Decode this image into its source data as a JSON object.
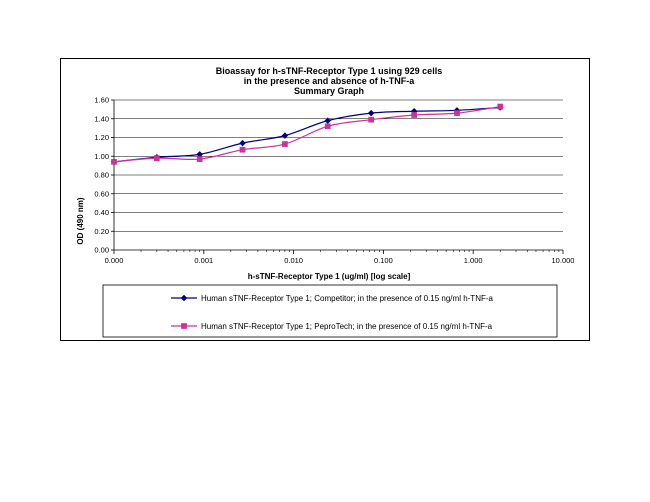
{
  "chart_data": {
    "type": "line",
    "title_lines": [
      "Bioassay for h-sTNF-Receptor Type 1 using 929 cells",
      "in the presence and absence of h-TNF-a",
      "Summary Graph"
    ],
    "xlabel": "h-sTNF-Receptor Type 1 (ug/ml) [log scale]",
    "ylabel": "OD (490 nm)",
    "x_scale": "log",
    "xlim": [
      0.0001,
      10
    ],
    "ylim": [
      0,
      1.6
    ],
    "x_ticks": [
      {
        "value": 0.0001,
        "label": "0.000"
      },
      {
        "value": 0.001,
        "label": "0.001"
      },
      {
        "value": 0.01,
        "label": "0.010"
      },
      {
        "value": 0.1,
        "label": "0.100"
      },
      {
        "value": 1,
        "label": "1.000"
      },
      {
        "value": 10,
        "label": "10.000"
      }
    ],
    "y_ticks": [
      {
        "value": 0,
        "label": "0.00"
      },
      {
        "value": 0.2,
        "label": "0.20"
      },
      {
        "value": 0.4,
        "label": "0.40"
      },
      {
        "value": 0.6,
        "label": "0.60"
      },
      {
        "value": 0.8,
        "label": "0.80"
      },
      {
        "value": 1.0,
        "label": "1.00"
      },
      {
        "value": 1.2,
        "label": "1.20"
      },
      {
        "value": 1.4,
        "label": "1.40"
      },
      {
        "value": 1.6,
        "label": "1.60"
      }
    ],
    "grid": "horizontal",
    "legend_position": "bottom",
    "series": [
      {
        "name": "Human sTNF-Receptor Type 1; Competitor; in the presence of 0.15 ng/ml h-TNF-a",
        "color": "#000080",
        "marker": "diamond",
        "points": [
          {
            "x": 0.0001,
            "y": 0.94
          },
          {
            "x": 0.0003,
            "y": 0.99
          },
          {
            "x": 0.0009,
            "y": 1.02
          },
          {
            "x": 0.0027,
            "y": 1.14
          },
          {
            "x": 0.008,
            "y": 1.22
          },
          {
            "x": 0.024,
            "y": 1.38
          },
          {
            "x": 0.073,
            "y": 1.46
          },
          {
            "x": 0.22,
            "y": 1.48
          },
          {
            "x": 0.66,
            "y": 1.49
          },
          {
            "x": 2.0,
            "y": 1.52
          }
        ]
      },
      {
        "name": "Human sTNF-Receptor Type 1; PeproTech; in the presence of 0.15 ng/ml h-TNF-a",
        "color": "#cc3399",
        "marker": "square",
        "points": [
          {
            "x": 0.0001,
            "y": 0.94
          },
          {
            "x": 0.0003,
            "y": 0.98
          },
          {
            "x": 0.0009,
            "y": 0.97
          },
          {
            "x": 0.0027,
            "y": 1.07
          },
          {
            "x": 0.008,
            "y": 1.13
          },
          {
            "x": 0.024,
            "y": 1.32
          },
          {
            "x": 0.073,
            "y": 1.39
          },
          {
            "x": 0.22,
            "y": 1.44
          },
          {
            "x": 0.66,
            "y": 1.46
          },
          {
            "x": 2.0,
            "y": 1.53
          }
        ]
      }
    ]
  }
}
